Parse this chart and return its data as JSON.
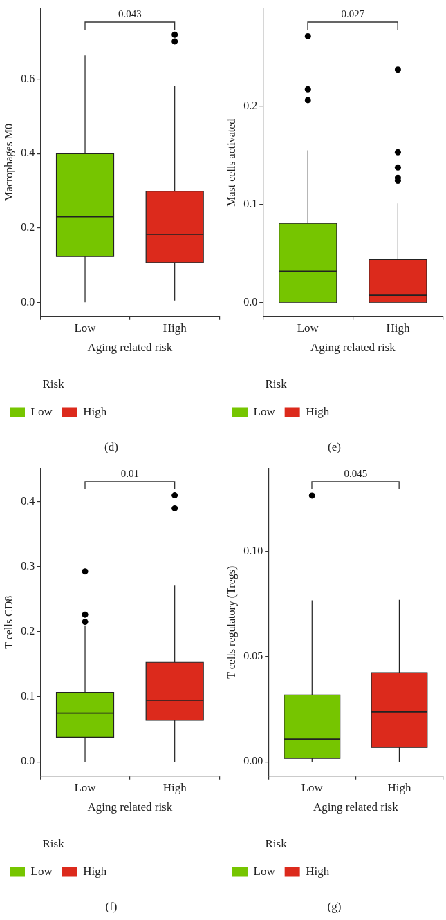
{
  "chart_data": [
    {
      "type": "box",
      "xlabel": "Aging related risk",
      "ylabel": "Macrophages M0",
      "legend_title": "Risk",
      "legend": "bottom",
      "categories": [
        "Low",
        "High"
      ],
      "series": [
        {
          "name": "Low",
          "color": "#76c500",
          "boxes": [
            {
              "low": 0,
              "q1": 0.123,
              "median": 0.23,
              "q3": 0.4,
              "high": 0.664
            },
            null
          ]
        },
        {
          "name": "High",
          "color": "#dc2a1c",
          "boxes": [
            null,
            {
              "low": 0.005,
              "q1": 0.107,
              "median": 0.183,
              "q3": 0.299,
              "high": 0.583,
              "outliers": [
                0.72,
                0.702
              ]
            }
          ]
        }
      ],
      "ylim": [
        -0.038,
        0.79
      ],
      "yticks": [
        {
          "value": 0,
          "label": "0.0"
        },
        {
          "value": 0.2,
          "label": "0.2"
        },
        {
          "value": 0.4,
          "label": "0.4"
        },
        {
          "value": 0.6,
          "label": "0.6"
        }
      ],
      "annotations": [
        "0.043",
        "(d)"
      ]
    },
    {
      "type": "box",
      "xlabel": "Aging related risk",
      "ylabel": "Mast cells activated",
      "legend_title": "Risk",
      "legend": "bottom",
      "categories": [
        "Low",
        "High"
      ],
      "series": [
        {
          "name": "Low",
          "color": "#76c500",
          "boxes": [
            {
              "low": 0,
              "q1": 0,
              "median": 0.032,
              "q3": 0.0806,
              "high": 0.155,
              "outliers": [
                0.271,
                0.217,
                0.206
              ]
            },
            null
          ]
        },
        {
          "name": "High",
          "color": "#dc2a1c",
          "boxes": [
            null,
            {
              "low": 0,
              "q1": 0,
              "median": 0.0076,
              "q3": 0.044,
              "high": 0.101,
              "outliers": [
                0.237,
                0.153,
                0.1375,
                0.127,
                0.124
              ]
            }
          ]
        }
      ],
      "ylim": [
        -0.014,
        0.299
      ],
      "yticks": [
        {
          "value": 0,
          "label": "0.0"
        },
        {
          "value": 0.1,
          "label": "0.1"
        },
        {
          "value": 0.2,
          "label": "0.2"
        }
      ],
      "annotations": [
        "0.027",
        "(e)"
      ]
    },
    {
      "type": "box",
      "xlabel": "Aging related risk",
      "ylabel": "T cells CD8",
      "legend_title": "Risk",
      "legend": "bottom",
      "categories": [
        "Low",
        "High"
      ],
      "series": [
        {
          "name": "Low",
          "color": "#76c500",
          "boxes": [
            {
              "low": 0,
              "q1": 0.038,
              "median": 0.075,
              "q3": 0.107,
              "high": 0.21,
              "outliers": [
                0.293,
                0.2265,
                0.2154
              ]
            },
            null
          ]
        },
        {
          "name": "High",
          "color": "#dc2a1c",
          "boxes": [
            null,
            {
              "low": 0,
              "q1": 0.064,
              "median": 0.095,
              "q3": 0.153,
              "high": 0.271,
              "outliers": [
                0.41,
                0.39
              ]
            }
          ]
        }
      ],
      "ylim": [
        -0.022,
        0.4515
      ],
      "yticks": [
        {
          "value": 0,
          "label": "0.0"
        },
        {
          "value": 0.1,
          "label": "0.1"
        },
        {
          "value": 0.2,
          "label": "0.2"
        },
        {
          "value": 0.3,
          "label": "0.3"
        },
        {
          "value": 0.4,
          "label": "0.4"
        }
      ],
      "annotations": [
        "0.01",
        "(f)"
      ]
    },
    {
      "type": "box",
      "xlabel": "Aging related risk",
      "ylabel": "T cells regulatory (Tregs)",
      "legend_title": "Risk",
      "legend": "bottom",
      "categories": [
        "Low",
        "High"
      ],
      "series": [
        {
          "name": "Low",
          "color": "#76c500",
          "boxes": [
            {
              "low": 0,
              "q1": 0.0017,
              "median": 0.0109,
              "q3": 0.0318,
              "high": 0.0767,
              "outliers": [
                0.1265
              ]
            },
            null
          ]
        },
        {
          "name": "High",
          "color": "#dc2a1c",
          "boxes": [
            null,
            {
              "low": 0,
              "q1": 0.0069,
              "median": 0.0238,
              "q3": 0.0424,
              "high": 0.077
            }
          ]
        }
      ],
      "ylim": [
        -0.00675,
        0.1394
      ],
      "yticks": [
        {
          "value": 0,
          "label": "0.00"
        },
        {
          "value": 0.05,
          "label": "0.05"
        },
        {
          "value": 0.1,
          "label": "0.10"
        }
      ],
      "annotations": [
        "0.045",
        "(g)"
      ]
    }
  ]
}
